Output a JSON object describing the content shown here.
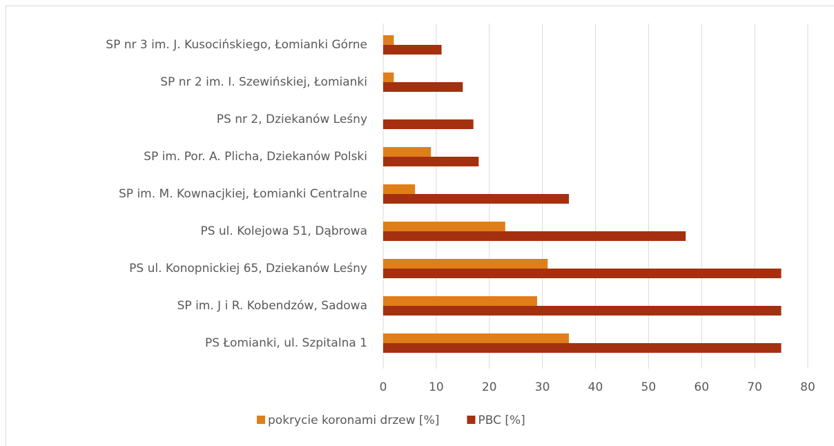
{
  "chart_data": {
    "type": "bar",
    "orientation": "horizontal",
    "categories": [
      "SP nr 3 im. J. Kusocińskiego, Łomianki Górne",
      "SP nr 2 im. I. Szewińskiej, Łomianki",
      "PS nr 2, Dziekanów Leśny",
      "SP im. Por. A. Plicha, Dziekanów Polski",
      "SP im. M. Kownacjkiej, Łomianki Centralne",
      "PS ul. Kolejowa 51, Dąbrowa",
      "PS ul. Konopnickiej 65, Dziekanów Leśny",
      "SP im. J i R. Kobendzów, Sadowa",
      "PS Łomianki, ul. Szpitalna 1"
    ],
    "series": [
      {
        "name": "pokrycie koronami drzew [%]",
        "color": "#e07f1a",
        "values": [
          2,
          2,
          0,
          9,
          6,
          23,
          31,
          29,
          35
        ]
      },
      {
        "name": "PBC [%]",
        "color": "#a5300f",
        "values": [
          11,
          15,
          17,
          18,
          35,
          57,
          75,
          75,
          75
        ]
      }
    ],
    "xlim": [
      0,
      80
    ],
    "xticks": [
      0,
      10,
      20,
      30,
      40,
      50,
      60,
      70,
      80
    ],
    "grid": true,
    "legend": "bottom"
  }
}
